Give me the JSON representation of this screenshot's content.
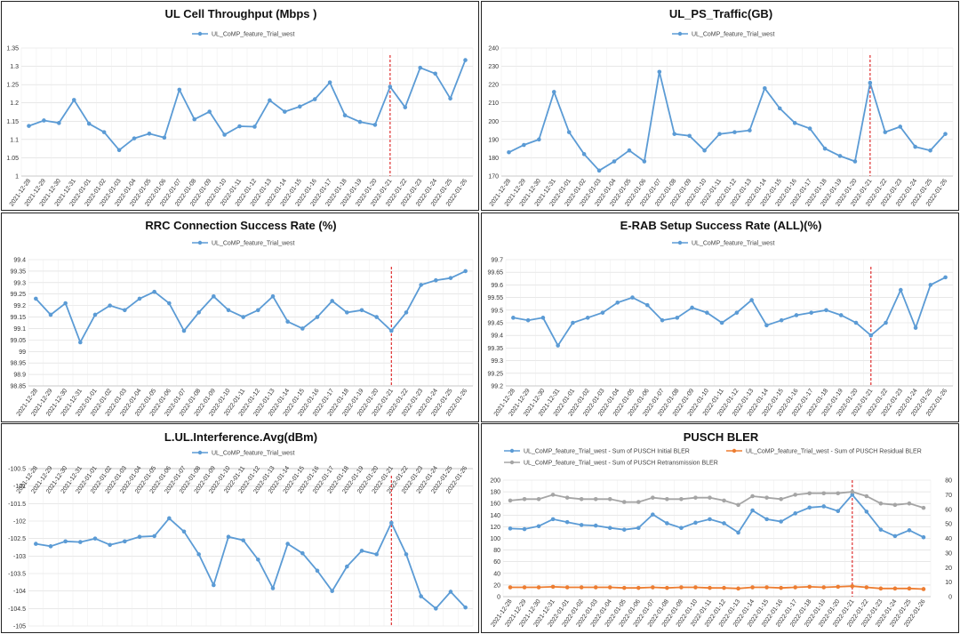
{
  "dates": [
    "2021-12-28",
    "2021-12-29",
    "2021-12-30",
    "2021-12-31",
    "2022-01-01",
    "2022-01-02",
    "2022-01-03",
    "2022-01-04",
    "2022-01-05",
    "2022-01-06",
    "2022-01-07",
    "2022-01-08",
    "2022-01-09",
    "2022-01-10",
    "2022-01-11",
    "2022-01-12",
    "2022-01-13",
    "2022-01-14",
    "2022-01-15",
    "2022-01-16",
    "2022-01-17",
    "2022-01-18",
    "2022-01-19",
    "2022-01-20",
    "2022-01-21",
    "2022-01-22",
    "2022-01-23",
    "2022-01-24",
    "2022-01-25",
    "2022-01-26"
  ],
  "chart_data": [
    {
      "type": "line",
      "title": "UL Cell Throughput (Mbps )",
      "x": "dates",
      "series": [
        {
          "name": "UL_CoMP_feature_Trial_west",
          "color": "#5b9bd5",
          "values": [
            1.137,
            1.152,
            1.145,
            1.208,
            1.143,
            1.12,
            1.071,
            1.103,
            1.116,
            1.105,
            1.236,
            1.155,
            1.176,
            1.113,
            1.136,
            1.135,
            1.207,
            1.176,
            1.19,
            1.21,
            1.256,
            1.166,
            1.148,
            1.14,
            1.244,
            1.188,
            1.296,
            1.28,
            1.212,
            1.317
          ]
        }
      ],
      "ylim": [
        1,
        1.35
      ],
      "yticks": [
        "1",
        "1.05",
        "1.1",
        "1.15",
        "1.2",
        "1.25",
        "1.3",
        "1.35"
      ],
      "marker_date": "2022-01-21",
      "grid": true
    },
    {
      "type": "line",
      "title": "UL_PS_Traffic(GB)",
      "x": "dates",
      "series": [
        {
          "name": "UL_CoMP_feature_Trial_west",
          "color": "#5b9bd5",
          "values": [
            183,
            187,
            190,
            216,
            194,
            182,
            173,
            178,
            184,
            178,
            227,
            193,
            192,
            184,
            193,
            194,
            195,
            218,
            207,
            199,
            196,
            185,
            181,
            178,
            221,
            194,
            197,
            186,
            184,
            193
          ]
        }
      ],
      "ylim": [
        170,
        240
      ],
      "yticks": [
        "170",
        "180",
        "190",
        "200",
        "210",
        "220",
        "230",
        "240"
      ],
      "marker_date": "2022-01-21",
      "grid": true
    },
    {
      "type": "line",
      "title": "RRC Connection Success Rate (%)",
      "x": "dates",
      "series": [
        {
          "name": "UL_CoMP_feature_Trial_west",
          "color": "#5b9bd5",
          "values": [
            99.23,
            99.16,
            99.21,
            99.04,
            99.16,
            99.2,
            99.18,
            99.23,
            99.26,
            99.21,
            99.09,
            99.17,
            99.24,
            99.18,
            99.15,
            99.18,
            99.24,
            99.13,
            99.1,
            99.15,
            99.22,
            99.17,
            99.18,
            99.15,
            99.09,
            99.17,
            99.29,
            99.31,
            99.32,
            99.35
          ]
        }
      ],
      "ylim": [
        98.85,
        99.4
      ],
      "yticks": [
        "98.85",
        "98.9",
        "98.95",
        "99",
        "99.05",
        "99.1",
        "99.15",
        "99.2",
        "99.25",
        "99.3",
        "99.35",
        "99.4"
      ],
      "marker_date": "2022-01-21",
      "grid": true
    },
    {
      "type": "line",
      "title": "E-RAB Setup Success Rate (ALL)(%)",
      "x": "dates",
      "series": [
        {
          "name": "UL_CoMP_feature_Trial_west",
          "color": "#5b9bd5",
          "values": [
            99.47,
            99.46,
            99.47,
            99.36,
            99.45,
            99.47,
            99.49,
            99.53,
            99.55,
            99.52,
            99.46,
            99.47,
            99.51,
            99.49,
            99.45,
            99.49,
            99.54,
            99.44,
            99.46,
            99.48,
            99.49,
            99.5,
            99.48,
            99.45,
            99.4,
            99.45,
            99.58,
            99.43,
            99.6,
            99.63
          ]
        }
      ],
      "ylim": [
        99.2,
        99.7
      ],
      "yticks": [
        "99.2",
        "99.25",
        "99.3",
        "99.35",
        "99.4",
        "99.45",
        "99.5",
        "99.55",
        "99.6",
        "99.65",
        "99.7"
      ],
      "marker_date": "2022-01-21",
      "grid": true
    },
    {
      "type": "line",
      "title": "L.UL.Interference.Avg(dBm)",
      "x": "dates",
      "x_axis_position": "top",
      "series": [
        {
          "name": "UL_CoMP_feature_Trial_west",
          "color": "#5b9bd5",
          "values": [
            -102.65,
            -102.72,
            -102.58,
            -102.6,
            -102.5,
            -102.68,
            -102.58,
            -102.45,
            -102.43,
            -101.92,
            -102.3,
            -102.95,
            -103.83,
            -102.45,
            -102.55,
            -103.1,
            -103.92,
            -102.65,
            -102.92,
            -103.42,
            -104,
            -103.3,
            -102.85,
            -102.95,
            -102.05,
            -102.95,
            -104.15,
            -104.5,
            -104.02,
            -104.47
          ]
        }
      ],
      "ylim": [
        -105,
        -100.5
      ],
      "yticks": [
        "-105",
        "-104.5",
        "-104",
        "-103.5",
        "-103",
        "-102.5",
        "-102",
        "-101.5",
        "-101",
        "-100.5"
      ],
      "marker_date": "2022-01-21",
      "grid": true
    },
    {
      "type": "line",
      "title": "PUSCH BLER",
      "x": "dates",
      "series": [
        {
          "name": "UL_CoMP_feature_Trial_west - Sum of PUSCH Initial BLER",
          "color": "#5b9bd5",
          "axis": "left",
          "values": [
            117,
            116,
            121,
            133,
            128,
            123,
            122,
            118,
            115,
            118,
            141,
            126,
            118,
            127,
            133,
            126,
            110,
            148,
            133,
            129,
            143,
            153,
            155,
            147,
            175,
            146,
            115,
            104,
            114,
            102
          ]
        },
        {
          "name": "UL_CoMP_feature_Trial_west - Sum of PUSCH Residual BLER",
          "color": "#ed7d31",
          "axis": "left",
          "values": [
            16,
            16,
            16,
            17,
            16,
            16,
            16,
            16,
            15,
            15,
            16,
            15,
            16,
            16,
            15,
            15,
            14,
            16,
            16,
            15,
            16,
            17,
            16,
            17,
            18,
            16,
            14,
            14,
            14,
            13
          ]
        },
        {
          "name": "UL_CoMP_feature_Trial_west - Sum of PUSCH Retransmission BLER",
          "color": "#a5a5a5",
          "axis": "right",
          "values": [
            66,
            67,
            67,
            70,
            68,
            67,
            67,
            67,
            65,
            65,
            68,
            67,
            67,
            68,
            68,
            66,
            63,
            69,
            68,
            67,
            70,
            71,
            71,
            71,
            72,
            69,
            64,
            63,
            64,
            61
          ]
        }
      ],
      "ylim": [
        0,
        200
      ],
      "yticks": [
        "0",
        "20",
        "40",
        "60",
        "80",
        "100",
        "120",
        "140",
        "160",
        "180",
        "200"
      ],
      "ylim_right": [
        0,
        80
      ],
      "yticks_right": [
        "0",
        "10",
        "20",
        "30",
        "40",
        "50",
        "60",
        "70",
        "80"
      ],
      "legend": "top",
      "marker_date": "2022-01-21",
      "grid": true
    }
  ]
}
